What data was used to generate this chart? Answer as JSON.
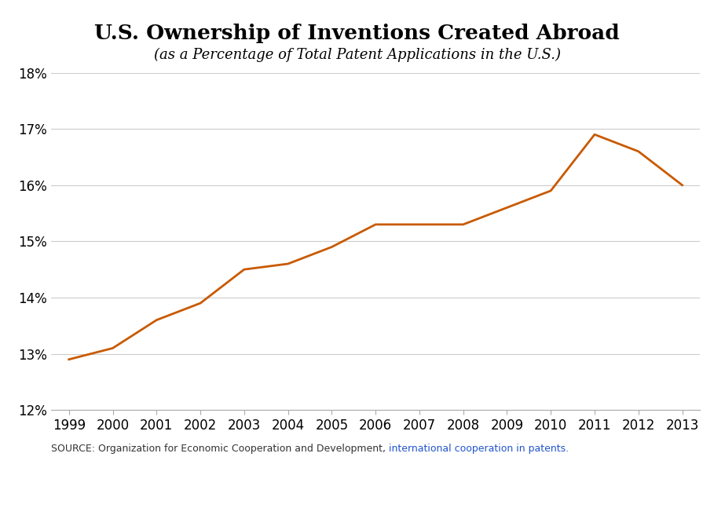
{
  "title": "U.S. Ownership of Inventions Created Abroad",
  "subtitle": "(as a Percentage of Total Patent Applications in the U.S.)",
  "years": [
    1999,
    2000,
    2001,
    2002,
    2003,
    2004,
    2005,
    2006,
    2007,
    2008,
    2009,
    2010,
    2011,
    2012,
    2013
  ],
  "values": [
    0.129,
    0.131,
    0.136,
    0.139,
    0.145,
    0.146,
    0.149,
    0.153,
    0.153,
    0.153,
    0.156,
    0.159,
    0.169,
    0.166,
    0.16
  ],
  "line_color": "#C85A00",
  "line_width": 2.0,
  "ylim": [
    0.12,
    0.18
  ],
  "yticks": [
    0.12,
    0.13,
    0.14,
    0.15,
    0.16,
    0.17,
    0.18
  ],
  "background_color": "#ffffff",
  "grid_color": "#cccccc",
  "title_fontsize": 19,
  "subtitle_fontsize": 13,
  "tick_fontsize": 12,
  "source_text_plain": "SOURCE: Organization for Economic Cooperation and Development, ",
  "source_text_link": "international cooperation in patents.",
  "source_color": "#333333",
  "source_link_color": "#2255cc",
  "footer_bg_color": "#1a3d5c",
  "footer_text_color": "#ffffff",
  "xlim_left": 1998.6,
  "xlim_right": 2013.4
}
